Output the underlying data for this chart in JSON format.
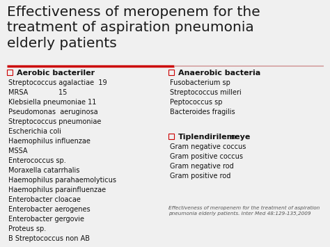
{
  "title_line1": "Effectiveness of meropenem for the",
  "title_line2": "treatment of aspiration pneumonia",
  "title_line3": "elderly patients",
  "title_fontsize": 14.5,
  "background_color": "#f0f0f0",
  "title_color": "#1a1a1a",
  "divider_color_left": "#cc0000",
  "divider_color_right": "#d4a0a0",
  "section1_header": "Aerobic bacteriler",
  "section1_items": [
    "Streptococcus agalactiae  19",
    "MRSA              15",
    "Klebsiella pneumoniae 11",
    "Pseudomonas  aeruginosa",
    "Streptococcus pneumoniae",
    "Escherichia coli",
    "Haemophilus influenzae",
    "MSSA",
    "Enterococcus sp.",
    "Moraxella catarrhalis",
    "Haemophilus parahaemolyticus",
    "Haemophilus parainfluenzae",
    "Enterobacter cloacae",
    "Enterobacter aerogenes",
    "Enterobacter gergovie",
    "Proteus sp.",
    "B Streptococcus non AB"
  ],
  "section2_header": "Anaerobic bacteria",
  "section2_items": [
    "Fusobacterium sp",
    "Streptococcus milleri",
    "Peptococcus sp",
    "Bacteroides fragilis"
  ],
  "section3_header_bold": "Tiplendirilemeye",
  "section3_header_normal": "n",
  "section3_items": [
    "Gram negative coccus",
    "Gram positive coccus",
    "Gram negative rod",
    "Gram positive rod"
  ],
  "footnote_line1": "Effectiveness of meropenem for the treatment of aspiration",
  "footnote_line2": "pneumonia elderly patients. Inter Med 48:129-135,2009",
  "header_fontsize": 8.0,
  "item_fontsize": 7.0,
  "footnote_fontsize": 5.2,
  "checkbox_color": "#cc0000",
  "text_color": "#111111"
}
